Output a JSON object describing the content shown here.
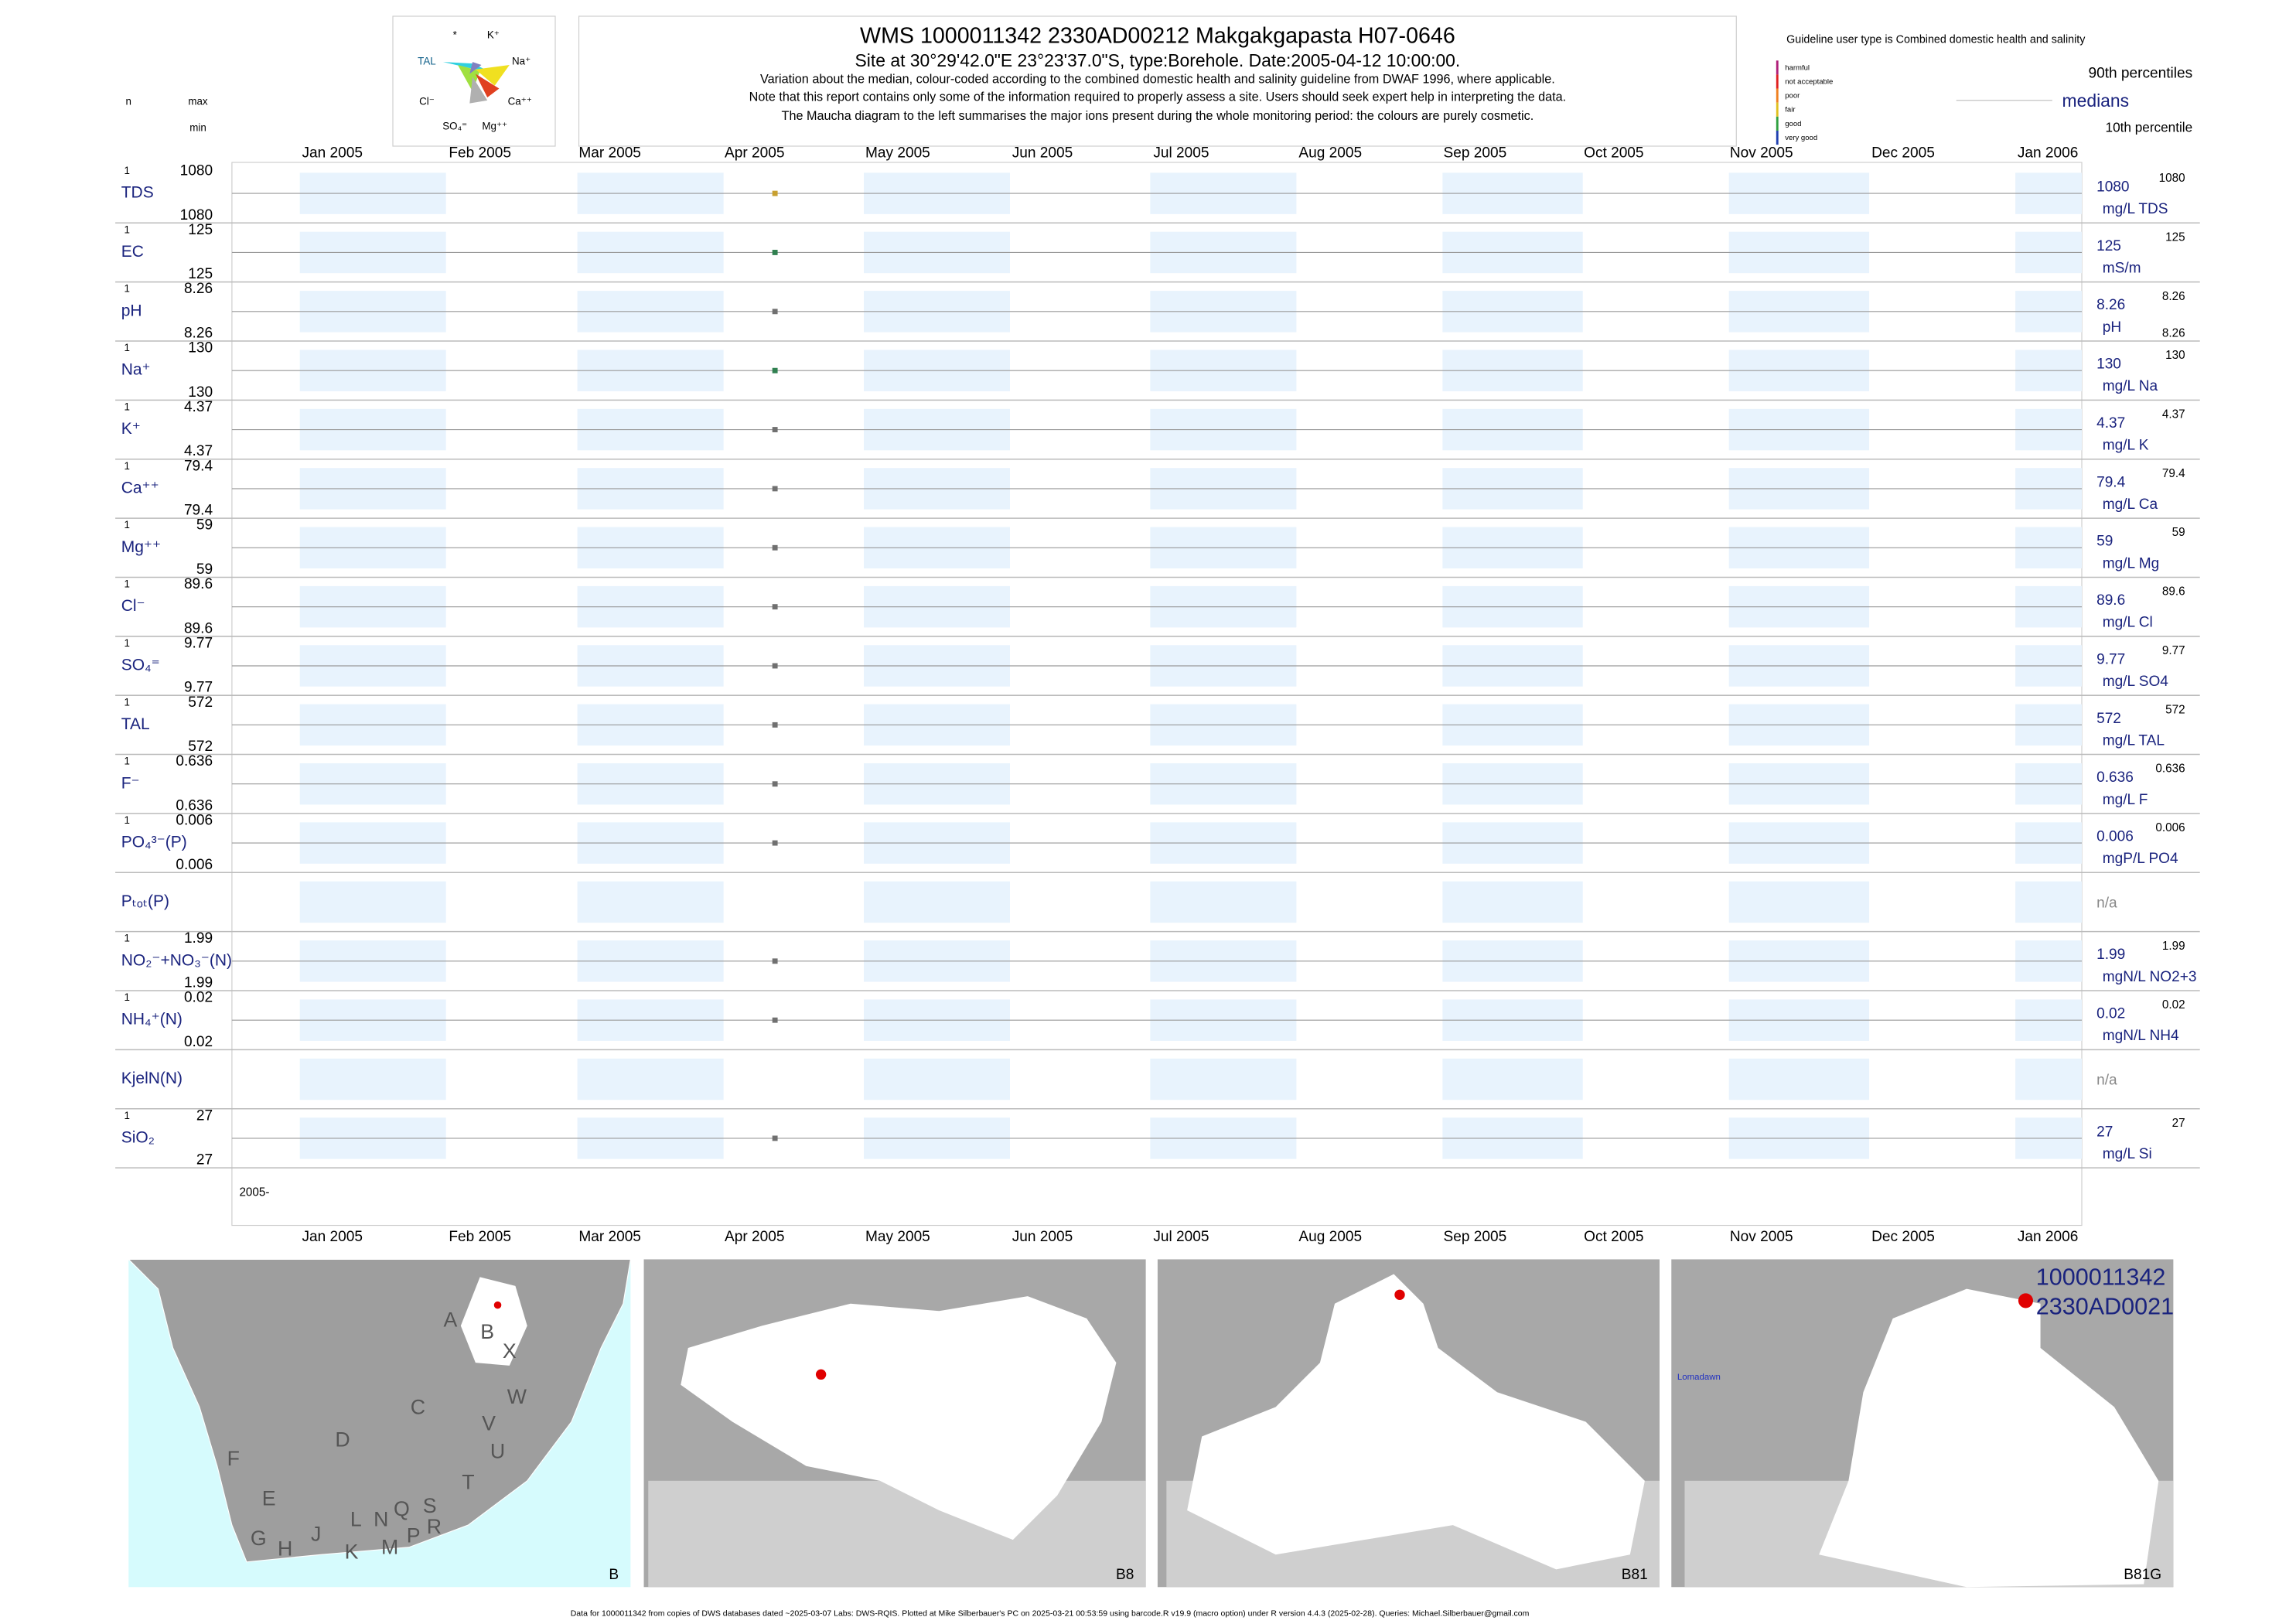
{
  "header": {
    "title": "WMS 1000011342 2330AD00212 Makgakgapasta H07-0646",
    "subtitle": "Site at 30°29'42.0\"E 23°23'37.0\"S, type:Borehole. Date:2005-04-12 10:00:00.",
    "notes": [
      "Variation about the median,  colour-coded according to the combined domestic health and salinity guideline from DWAF 1996, where applicable.",
      "Note that this report contains only some of the information required to properly assess a site. Users should seek expert help in interpreting the data.",
      "The Maucha diagram to the left summarises the major ions present during the whole monitoring period: the colours are purely cosmetic."
    ],
    "col_n": "n",
    "col_max": "max",
    "col_min": "min"
  },
  "maucha": {
    "labels": [
      "*",
      "K⁺",
      "TAL",
      "Na⁺",
      "Cl⁻",
      "Ca⁺⁺",
      "SO₄⁼",
      "Mg⁺⁺"
    ]
  },
  "legend": {
    "guideline": "Guideline user type is Combined domestic health and salinity",
    "classes": [
      {
        "name": "harmful",
        "color": "#b0207a"
      },
      {
        "name": "not acceptable",
        "color": "#e02020"
      },
      {
        "name": "poor",
        "color": "#f08020"
      },
      {
        "name": "fair",
        "color": "#e0c020"
      },
      {
        "name": "good",
        "color": "#30a040"
      },
      {
        "name": "very good",
        "color": "#2040b0"
      }
    ],
    "p90": "90th percentiles",
    "medians": "medians",
    "p10": "10th percentile"
  },
  "months": [
    "Jan 2005",
    "Feb 2005",
    "Mar 2005",
    "Apr 2005",
    "May 2005",
    "Jun 2005",
    "Jul 2005",
    "Aug 2005",
    "Sep 2005",
    "Oct 2005",
    "Nov 2005",
    "Dec 2005",
    "Jan 2006"
  ],
  "year_label": "2005-",
  "rows": [
    {
      "label": "TDS",
      "n": 1,
      "max": 1080,
      "min": 1080,
      "median": 1080,
      "unit": "mg/L TDS",
      "color": "#c8a030"
    },
    {
      "label": "EC",
      "n": 1,
      "max": 125,
      "min": 125,
      "median": 125,
      "unit": "mS/m",
      "color": "#308050"
    },
    {
      "label": "pH",
      "n": 1,
      "max": 8.26,
      "min": 8.26,
      "median": 8.26,
      "unit": "pH",
      "color": "#707070"
    },
    {
      "label": "Na⁺",
      "n": 1,
      "max": 130,
      "min": 130,
      "median": 130,
      "unit": "mg/L Na",
      "color": "#308050"
    },
    {
      "label": "K⁺",
      "n": 1,
      "max": 4.37,
      "min": 4.37,
      "median": 4.37,
      "unit": "mg/L K",
      "color": "#707070"
    },
    {
      "label": "Ca⁺⁺",
      "n": 1,
      "max": 79.4,
      "min": 79.4,
      "median": 79.4,
      "unit": "mg/L Ca",
      "color": "#707070"
    },
    {
      "label": "Mg⁺⁺",
      "n": 1,
      "max": 59,
      "min": 59,
      "median": 59,
      "unit": "mg/L Mg",
      "color": "#707070"
    },
    {
      "label": "Cl⁻",
      "n": 1,
      "max": 89.6,
      "min": 89.6,
      "median": 89.6,
      "unit": "mg/L Cl",
      "color": "#707070"
    },
    {
      "label": "SO₄⁼",
      "n": 1,
      "max": 9.77,
      "min": 9.77,
      "median": 9.77,
      "unit": "mg/L SO4",
      "color": "#707070"
    },
    {
      "label": "TAL",
      "n": 1,
      "max": 572,
      "min": 572,
      "median": 572,
      "unit": "mg/L TAL",
      "color": "#707070"
    },
    {
      "label": "F⁻",
      "n": 1,
      "max": 0.636,
      "min": 0.636,
      "median": 0.636,
      "unit": "mg/L F",
      "color": "#707070"
    },
    {
      "label": "PO₄³⁻(P)",
      "n": 1,
      "max": 0.006,
      "min": 0.006,
      "median": 0.006,
      "unit": "mgP/L PO4",
      "color": "#707070"
    },
    {
      "label": "Pₜₒₜ(P)",
      "status": "n/a"
    },
    {
      "label": "NO₂⁻+NO₃⁻(N)",
      "n": 1,
      "max": 1.99,
      "min": 1.99,
      "median": 1.99,
      "unit": "mgN/L NO2+3",
      "color": "#707070"
    },
    {
      "label": "NH₄⁺(N)",
      "n": 1,
      "max": 0.02,
      "min": 0.02,
      "median": 0.02,
      "unit": "mgN/L NH4",
      "color": "#707070"
    },
    {
      "label": "KjelN(N)",
      "status": "n/a"
    },
    {
      "label": "SiO₂",
      "n": 1,
      "max": 27,
      "min": 27,
      "median": 27,
      "unit": "mg/L Si",
      "color": "#707070"
    }
  ],
  "maps": {
    "panels": [
      "B",
      "B8",
      "B81",
      "B81G"
    ],
    "regions": [
      "A",
      "B",
      "X",
      "W",
      "C",
      "D",
      "V",
      "U",
      "F",
      "T",
      "E",
      "S",
      "R",
      "Q",
      "L",
      "N",
      "G",
      "H",
      "J",
      "K",
      "M",
      "P"
    ],
    "site_lines": [
      "1000011342",
      "2330AD0021"
    ],
    "place": "Lomadawn"
  },
  "footer": "Data for 1000011342 from copies of DWS databases dated ~2025-03-07 Labs: DWS-RQIS. Plotted at Mike Silberbauer's PC on 2025-03-21 00:53:59 using barcode.R v19.9 (macro option) under R version 4.4.3 (2025-02-28). Queries: Michael.Silberbauer@gmail.com"
}
